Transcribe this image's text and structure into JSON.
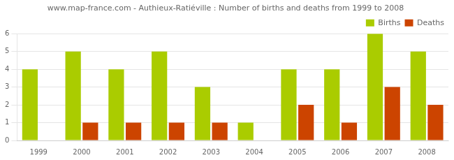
{
  "chart_data": {
    "type": "bar",
    "title": "www.map-france.com - Authieux-Ratiéville : Number of births and deaths from 1999 to 2008",
    "categories": [
      "1999",
      "2000",
      "2001",
      "2002",
      "2003",
      "2004",
      "2005",
      "2006",
      "2007",
      "2008"
    ],
    "series": [
      {
        "name": "Births",
        "color": "#aacc00",
        "values": [
          4,
          5,
          4,
          5,
          3,
          1,
          4,
          4,
          6,
          5
        ]
      },
      {
        "name": "Deaths",
        "color": "#cc4400",
        "values": [
          0,
          1,
          1,
          1,
          1,
          0,
          2,
          1,
          3,
          2
        ]
      }
    ],
    "ylim": [
      0,
      6
    ],
    "yticks": [
      0,
      1,
      2,
      3,
      4,
      5,
      6
    ],
    "grid": true,
    "legend": "upper right"
  }
}
